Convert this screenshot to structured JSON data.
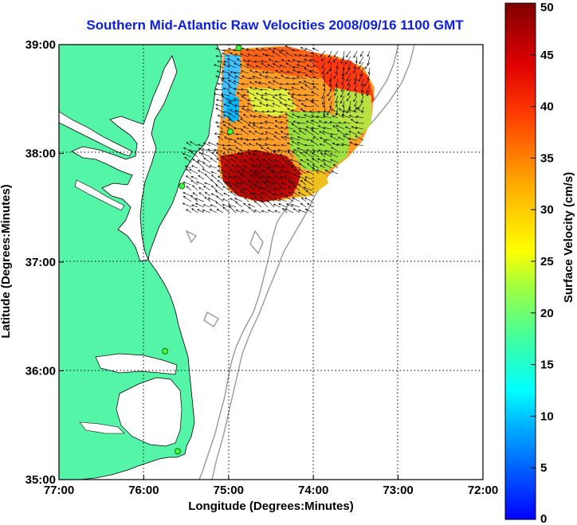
{
  "title": "Southern Mid-Atlantic Raw Velocities 2008/09/16 1100 GMT",
  "x_axis": {
    "label": "Longitude (Degrees:Minutes)",
    "ticks": [
      "77:00",
      "76:00",
      "75:00",
      "74:00",
      "73:00",
      "72:00"
    ]
  },
  "y_axis": {
    "label": "Latitude (Degrees:Minutes)",
    "ticks": [
      "39:00",
      "38:00",
      "37:00",
      "36:00",
      "35:00"
    ]
  },
  "colorbar": {
    "label": "Surface Velocity (cm/s)",
    "ticks": [
      "0",
      "5",
      "10",
      "15",
      "20",
      "25",
      "30",
      "35",
      "40",
      "45",
      "50"
    ],
    "min": 0,
    "max": 50
  },
  "map_extent": {
    "lon_min": -77,
    "lon_max": -72,
    "lat_min": 35,
    "lat_max": 39
  },
  "colors": {
    "land": "#55f5a8",
    "title": "#0a1ee6",
    "grid": "#000000",
    "bathymetry": "#999999"
  },
  "hf_radar_sites": [
    {
      "lon": -74.88,
      "lat": 38.97
    },
    {
      "lon": -74.98,
      "lat": 38.2
    },
    {
      "lon": -75.55,
      "lat": 37.7
    },
    {
      "lon": -75.75,
      "lat": 36.18
    },
    {
      "lon": -75.6,
      "lat": 35.26
    }
  ]
}
